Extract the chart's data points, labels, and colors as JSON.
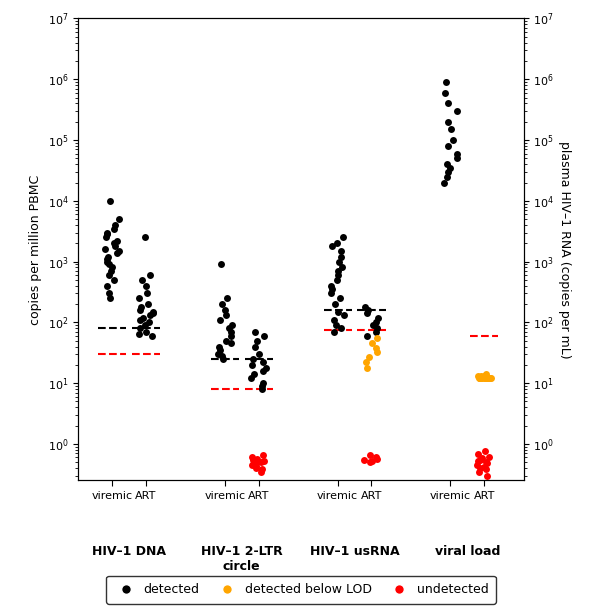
{
  "ylabel_left": "copies per million PBMC",
  "ylabel_right": "plasma HIV–1 RNA (copies per mL)",
  "ylim_low": 0.25,
  "ylim_high": 10000000.0,
  "groups": [
    "HIV–1 DNA",
    "HIV–1 2-LTR\ncircle",
    "HIV–1 usRNA",
    "viral load"
  ],
  "black_dashes": {
    "hiv1dna": 80,
    "hiv12ltr": 25,
    "hiv1usrna": 160
  },
  "red_dashes": {
    "hiv1dna": 30,
    "hiv12ltr": 8,
    "hiv1usrna": 75,
    "viralload": 60
  },
  "detected_black": {
    "hiv1dna_viremic": [
      10000,
      5000,
      4000,
      3500,
      3000,
      2800,
      2500,
      2200,
      2000,
      1800,
      1600,
      1500,
      1400,
      1200,
      1100,
      1000,
      900,
      800,
      700,
      600,
      500,
      400,
      300,
      250
    ],
    "hiv1dna_art": [
      2500,
      600,
      500,
      400,
      300,
      250,
      200,
      180,
      160,
      150,
      140,
      130,
      120,
      110,
      100,
      90,
      80,
      70,
      65,
      60
    ],
    "hiv12ltr_viremic": [
      900,
      250,
      200,
      160,
      130,
      110,
      90,
      80,
      70,
      60,
      50,
      45,
      40,
      35,
      30,
      28,
      25
    ],
    "hiv12ltr_art": [
      70,
      60,
      50,
      40,
      30,
      25,
      22,
      20,
      18,
      16,
      14,
      12,
      10,
      9,
      8
    ],
    "hiv1usrna_viremic": [
      2500,
      2000,
      1800,
      1500,
      1200,
      1000,
      800,
      700,
      600,
      500,
      400,
      350,
      300,
      250,
      200,
      150,
      130,
      110,
      90,
      80,
      70
    ],
    "hiv1usrna_art": [
      180,
      160,
      140,
      120,
      100,
      90,
      80,
      70,
      60
    ],
    "viralload_viremic": [
      900000,
      600000,
      400000,
      300000,
      200000,
      150000,
      100000,
      80000,
      60000,
      50000,
      40000,
      35000,
      30000,
      25000,
      20000
    ]
  },
  "detected_orange": {
    "hiv1usrna_art": [
      55,
      45,
      38,
      32,
      27,
      22,
      18
    ],
    "viralload_art": [
      14,
      13,
      13,
      13,
      12,
      12,
      12,
      12,
      12,
      12,
      12,
      12,
      12,
      12,
      12,
      12,
      12
    ]
  },
  "undetected_red": {
    "hiv12ltr_art": [
      0.65,
      0.6,
      0.57,
      0.55,
      0.52,
      0.5,
      0.48,
      0.45,
      0.43,
      0.4,
      0.38,
      0.35
    ],
    "hiv1usrna_art": [
      0.65,
      0.6,
      0.57,
      0.55,
      0.52,
      0.5
    ],
    "viralload_art": [
      0.75,
      0.68,
      0.62,
      0.58,
      0.55,
      0.52,
      0.5,
      0.48,
      0.45,
      0.42,
      0.4,
      0.38,
      0.35,
      0.3
    ]
  },
  "colors": {
    "black": "#000000",
    "orange": "#FFA500",
    "red": "#FF0000"
  },
  "legend": {
    "detected": "detected",
    "below_lod": "detected below LOD",
    "undetected": "undetected"
  },
  "positions": {
    "hiv1dna_viremic": 1.0,
    "hiv1dna_art": 1.6,
    "hiv12ltr_viremic": 3.0,
    "hiv12ltr_art": 3.6,
    "hiv1usrna_viremic": 5.0,
    "hiv1usrna_art": 5.6,
    "viralload_viremic": 7.0,
    "viralload_art": 7.6
  }
}
